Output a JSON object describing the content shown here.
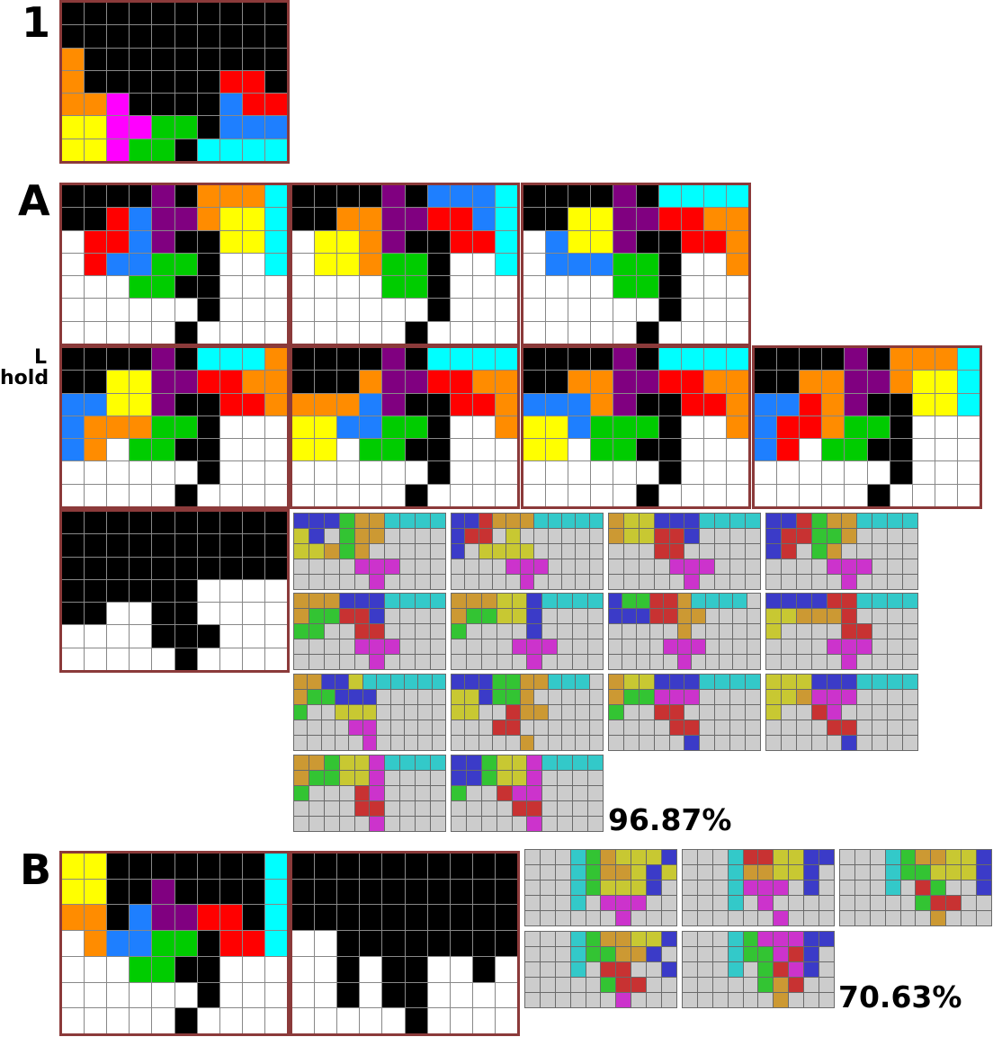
{
  "labels": {
    "section_1": "1",
    "section_A": "A",
    "section_B": "B",
    "hold_top": "L",
    "hold_bottom": "hold"
  },
  "results": {
    "A_percent": "96.87%",
    "B_percent": "70.63%"
  },
  "colors": {
    "X": "#000000",
    "W": "#ffffff",
    "O": "#ff8c00",
    "Y": "#ffff00",
    "M": "#ff00ff",
    "G": "#00cc00",
    "R": "#ff0000",
    "B": "#1e7fff",
    "C": "#00ffff",
    "P": "#800080",
    "g": "#cccccc",
    "b": "#3b3bc8",
    "c": "#33c9c9",
    "o": "#cc9933",
    "y": "#c8c832",
    "e": "#33c433",
    "r": "#c83232",
    "m": "#cc33cc"
  },
  "boards": {
    "board_1": [
      "XXXXXXXXXX",
      "XXXXXXXXXX",
      "OXXXXXXXXX",
      "OXXXXXXRRX",
      "OOMXXXXBRR",
      "YYMMGGXBBB",
      "YYMGGXCCCC"
    ],
    "board_A1": [
      "XXXXPXOOOC",
      "XXRBPPOYYC",
      "WRRBPXXYYC",
      "WRBBGGXWWC",
      "WWWGGXXWWW",
      "WWWWWWXWWW",
      "WWWWWXWWWW"
    ],
    "board_A2": [
      "XXXXPXBBBC",
      "XXOOPPRRBC",
      "WYYOPXXRRC",
      "WYYOGGXWWC",
      "WWWWGGXWWW",
      "WWWWWWXWWW",
      "WWWWWXWWWW"
    ],
    "board_A3": [
      "XXXXPXCCCC",
      "XXYYPPRROO",
      "WBYYPXXRRO",
      "WBBBGGXWWO",
      "WWWWGGXWWW",
      "WWWWWWXWWW",
      "WWWWWXWWWW"
    ],
    "board_A4": [
      "XXXXPXCCCO",
      "XXYYPPRROO",
      "BBYYPXXRRO",
      "BOOOGGXWWW",
      "BOWGGXXWWW",
      "WWWWWWXWWW",
      "WWWWWXWWWW"
    ],
    "board_A5": [
      "XXXXPXCCCC",
      "XXXOPPRROO",
      "OOOBPXXRRO",
      "YYBBGGXWWO",
      "YYWGGXXWWW",
      "WWWWWWXWWW",
      "WWWWWXWWWW"
    ],
    "board_A6": [
      "XXXXPXCCCC",
      "XXOOPPRROO",
      "BBBOPXXRRO",
      "YYBGGGXWWO",
      "YYWGGXXWWW",
      "WWWWWWXWWW",
      "WWWWWXWWWW"
    ],
    "board_A7": [
      "XXXXPXOOOC",
      "XXOOPPOYYC",
      "BBROPXXYYC",
      "BRROGGXWWW",
      "BRWGGXXWWW",
      "WWWWWWXWWW",
      "WWWWWXWWWW"
    ],
    "board_A_hold": [
      "XXXXXXXXXX",
      "XXXXXXXXXX",
      "XXXXXXXXXX",
      "XXXXXXWWWW",
      "XXWWXXWWWW",
      "WWWWXXXWWW",
      "WWWWWXWWWW"
    ],
    "board_B1": [
      "YYXXXXXXXC",
      "YYXXPXXXXC",
      "OOXBPPRRXC",
      "WOBBGGXRRC",
      "WWWGGXXWWW",
      "WWWWWWXWWW",
      "WWWWWXWWWW"
    ],
    "board_B2": [
      "XXXXXXXXXX",
      "XXXXXXXXXX",
      "XXXXXXXXXX",
      "WWXXXXXXXX",
      "WWXWXXWWXW",
      "WWXWXXWWWW",
      "WWWWWXWWWW"
    ]
  },
  "minis_A": [
    [
      "bbbeoocccc",
      "ybgeoogggg",
      "yyoeoggggg",
      "ggggmmmggg",
      "gggggmgggg"
    ],
    [
      "bbroooccccc",
      "brrgygggggg",
      "bgyyyyggggg",
      "ggggmmmgggg",
      "gggggmggggg"
    ],
    [
      "oyybbbcccc",
      "oyyrrbgggg",
      "gggrrggggg",
      "ggggmmmggg",
      "gggggmgggg"
    ],
    [
      "bbreoocccc",
      "brreeogggg",
      "brgeoggggg",
      "ggggmmmggg",
      "gggggmgggg"
    ],
    [
      "ooobbbcccc",
      "oeerrbgggg",
      "eeggrrgggg",
      "ggggmmmggg",
      "gggggmgggg"
    ],
    [
      "oooyybcccc",
      "oeeyybgggg",
      "eggggbgggg",
      "ggggmmmggg",
      "gggggmgggg"
    ],
    [
      "beerrocccc",
      "bbbrroogggg",
      "gggggoggggg",
      "ggggmmmggg",
      "gggggmgggg"
    ],
    [
      "bbbbrrcccc",
      "yyooorgggg",
      "yggggrrggg",
      "ggggmmmggg",
      "gggggmgggg"
    ],
    [
      "oobbycccccc",
      "oeebbbggggg",
      "eggyyyggggg",
      "ggggmmggggg",
      "gggggmggggg"
    ],
    [
      "bbbeeooccc",
      "yybeeogggg",
      "yyggroogggg",
      "gggrrggggg",
      "gggggoggggg"
    ],
    [
      "oyybbbcccc",
      "oeemmmgggg",
      "eggrrggggg",
      "ggggrrgggg",
      "gggggbgggg"
    ],
    [
      "yyybbbcccc",
      "yyommmgggg",
      "yggrmggggg",
      "ggggrrgggg",
      "gggggbgggg"
    ],
    [
      "ooeyymcccc",
      "oeeyymgggg",
      "egggrmgggg",
      "ggggrrgggg",
      "gggggmgggg"
    ],
    [
      "bbeyymcccc",
      "bbeyymgggg",
      "eggrmmgggg",
      "ggggrrgggg",
      "gggggmgggg"
    ]
  ],
  "minis_B": [
    [
      "gggceoyyyb",
      "gggceooyby",
      "gggceyyybg",
      "gggcgmmmgg",
      "ggggggmggg"
    ],
    [
      "gggcrryybb",
      "gggcooyybg",
      "gggcmmmgbg",
      "gggcgmgggg",
      "ggggggmggg"
    ],
    [
      "gggceooyyb",
      "gggceeyyyb",
      "gggcgreggb",
      "gggggerrgg",
      "ggggggoggg"
    ],
    [
      "gggceooyyb",
      "gggceeoobg",
      "gggcgrrggb",
      "gggggerrgg",
      "ggggggmggg"
    ],
    [
      "gggcemmmbb",
      "gggceemrbg",
      "gggcgermbg",
      "gggggeorgg",
      "ggggggoggg"
    ]
  ]
}
